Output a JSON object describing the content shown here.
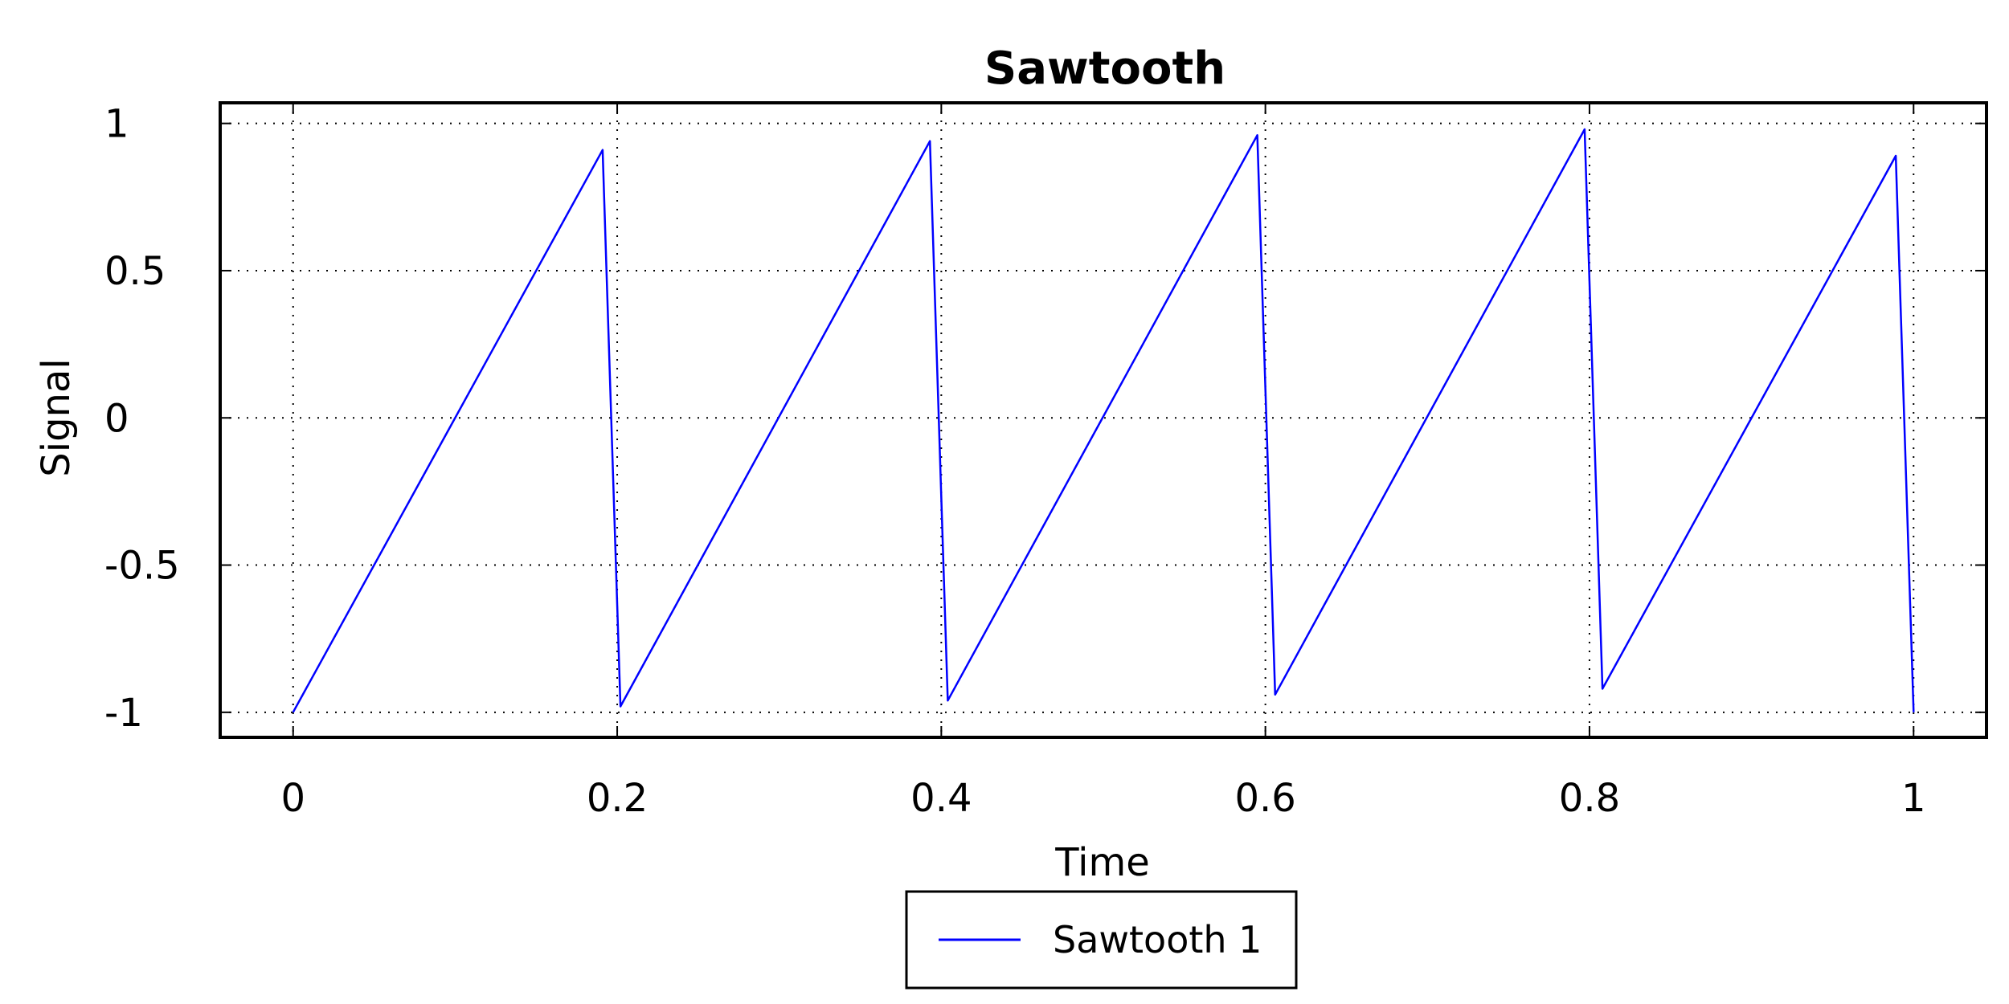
{
  "chart_data": {
    "type": "line",
    "title": "Sawtooth",
    "xlabel": "Time",
    "ylabel": "Signal",
    "xlim": [
      -0.045,
      1.045
    ],
    "ylim": [
      -1.085,
      1.07
    ],
    "xticks": [
      0,
      0.2,
      0.4,
      0.6,
      0.8,
      1
    ],
    "xtick_labels": [
      "0",
      "0.2",
      "0.4",
      "0.6",
      "0.8",
      "1"
    ],
    "yticks": [
      -1,
      -0.5,
      0,
      0.5,
      1
    ],
    "ytick_labels": [
      "-1",
      "-0.5",
      "0",
      "0.5",
      "1"
    ],
    "grid": true,
    "legend_position": "bottom-center",
    "series": [
      {
        "name": "Sawtooth 1",
        "color": "#0000ff",
        "x": [
          0,
          0.191,
          0.202,
          0.393,
          0.404,
          0.595,
          0.606,
          0.797,
          0.808,
          0.989,
          1.0
        ],
        "y": [
          -1.0,
          0.91,
          -0.98,
          0.94,
          -0.96,
          0.96,
          -0.94,
          0.98,
          -0.92,
          0.89,
          -1.0
        ]
      }
    ]
  }
}
